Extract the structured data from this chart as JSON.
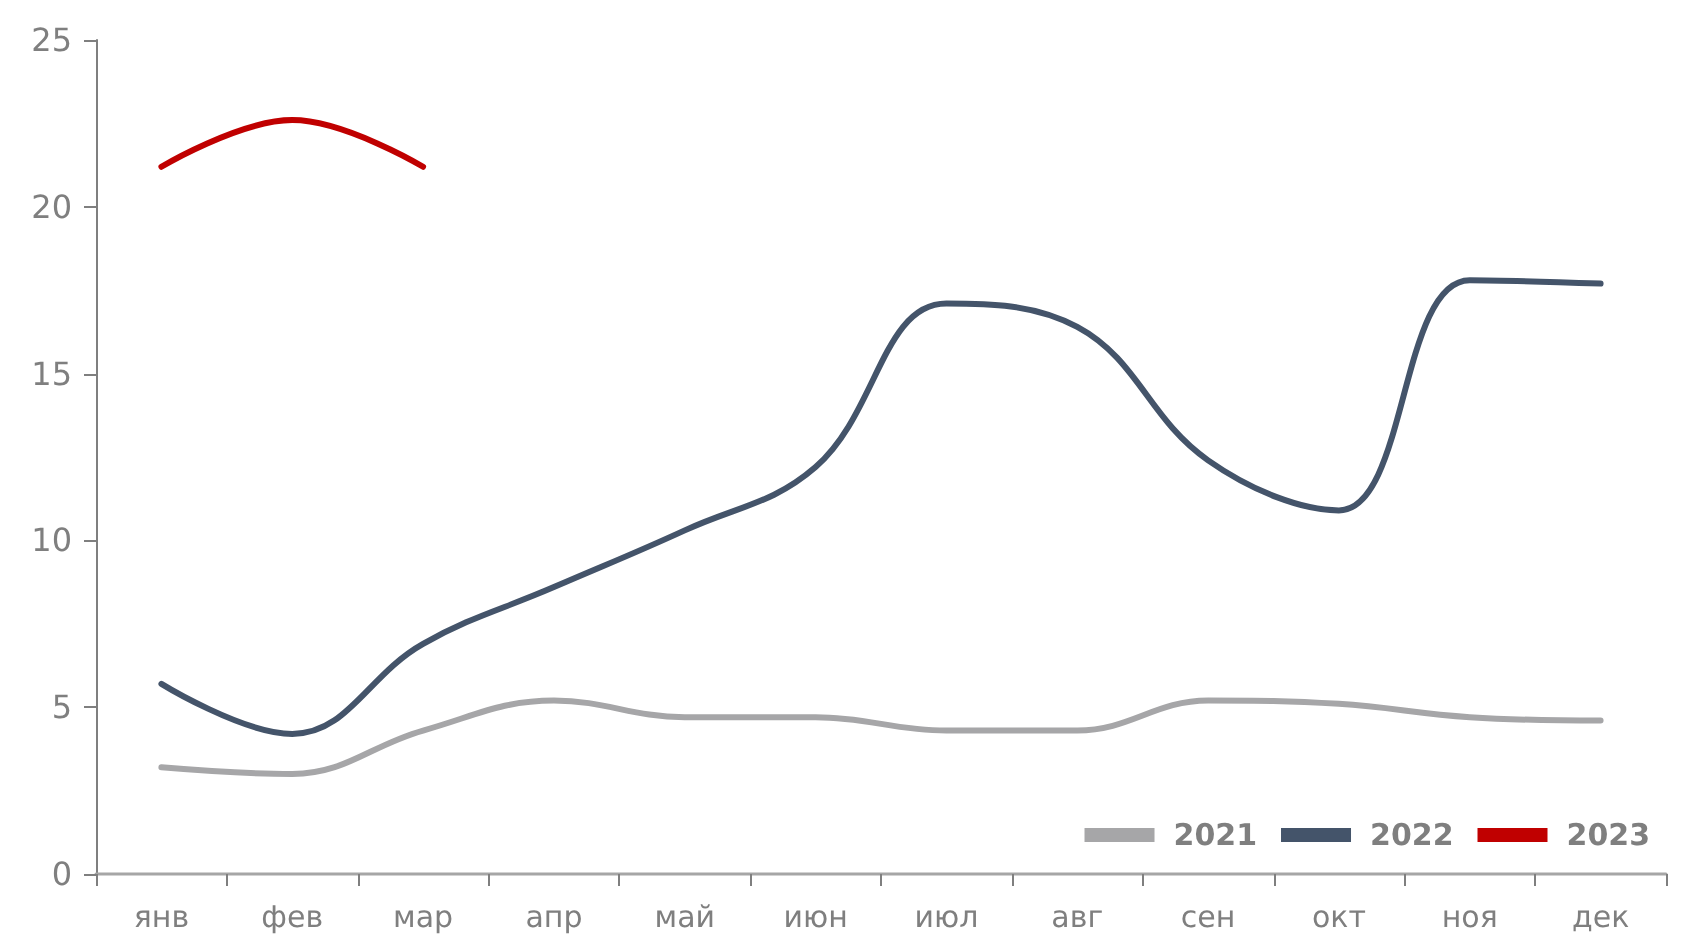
{
  "chart_data": {
    "type": "line",
    "categories": [
      "янв",
      "фев",
      "мар",
      "апр",
      "май",
      "июн",
      "июл",
      "авг",
      "сен",
      "окт",
      "ноя",
      "дек"
    ],
    "series": [
      {
        "name": "2021",
        "color": "#a6a6a8",
        "values": [
          3.2,
          3.0,
          4.3,
          5.2,
          4.7,
          4.7,
          4.3,
          4.3,
          5.2,
          5.1,
          4.7,
          4.6
        ]
      },
      {
        "name": "2022",
        "color": "#44546a",
        "values": [
          5.7,
          4.2,
          6.9,
          8.6,
          10.3,
          12.2,
          17.1,
          16.4,
          12.4,
          10.9,
          17.8,
          17.7
        ]
      },
      {
        "name": "2023",
        "color": "#c00000",
        "values": [
          21.2,
          22.6,
          21.2,
          null,
          null,
          null,
          null,
          null,
          null,
          null,
          null,
          null
        ]
      }
    ],
    "ylim": [
      0,
      25
    ],
    "yticks": [
      0,
      5,
      10,
      15,
      20,
      25
    ],
    "grid": false,
    "legend": "bottom right",
    "marker": "none",
    "line_style": "solid"
  }
}
